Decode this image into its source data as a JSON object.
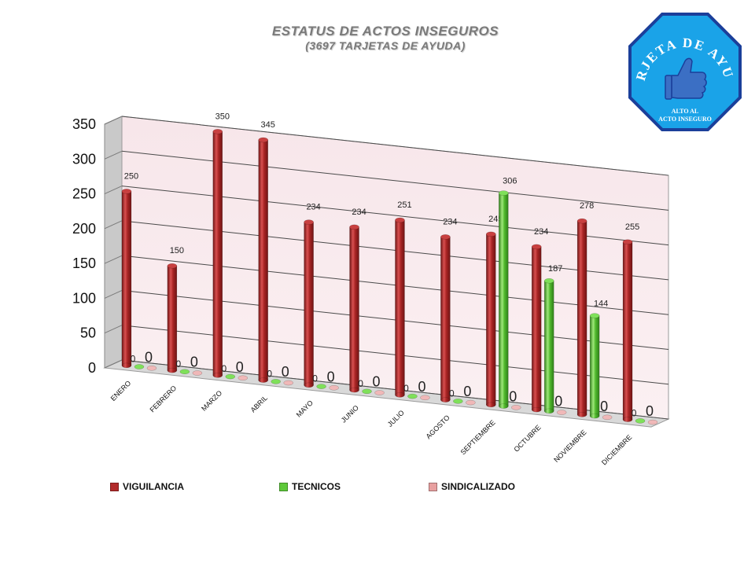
{
  "header": {
    "title": "ESTATUS DE  ACTOS INSEGUROS",
    "subtitle": "(3697  TARJETAS DE AYUDA)"
  },
  "logo": {
    "arc_text": "TARJETA DE AYUDA",
    "line1": "ALTO AL",
    "line2": "ACTO INSEGURO",
    "icon": "thumbs-up-icon",
    "fill_color": "#1aa3e8",
    "border_color": "#1b3f9a"
  },
  "chart_data": {
    "type": "bar",
    "categories": [
      "ENERO",
      "FEBRERO",
      "MARZO",
      "ABRIL",
      "MAYO",
      "JUNIO",
      "JULIO",
      "AGOSTO",
      "SEPTIEMBRE",
      "OCTUBRE",
      "NOVIEMBRE",
      "DICIEMBRE"
    ],
    "series": [
      {
        "name": "VIGUILANCIA",
        "values": [
          250,
          150,
          350,
          345,
          234,
          234,
          251,
          234,
          245,
          234,
          278,
          255
        ],
        "color": "#b22a2a"
      },
      {
        "name": "TECNICOS",
        "values": [
          0,
          0,
          0,
          0,
          0,
          0,
          0,
          0,
          306,
          187,
          144,
          0
        ],
        "color": "#5ec93a"
      },
      {
        "name": "SINDICALIZADO",
        "values": [
          0,
          0,
          0,
          0,
          0,
          0,
          0,
          0,
          0,
          0,
          0,
          0
        ],
        "color": "#e8a0a0"
      }
    ],
    "yticks": [
      "0",
      "50",
      "100",
      "150",
      "200",
      "250",
      "300",
      "350"
    ],
    "ylim": [
      0,
      350
    ],
    "legend_position": "bottom",
    "grid": true
  }
}
